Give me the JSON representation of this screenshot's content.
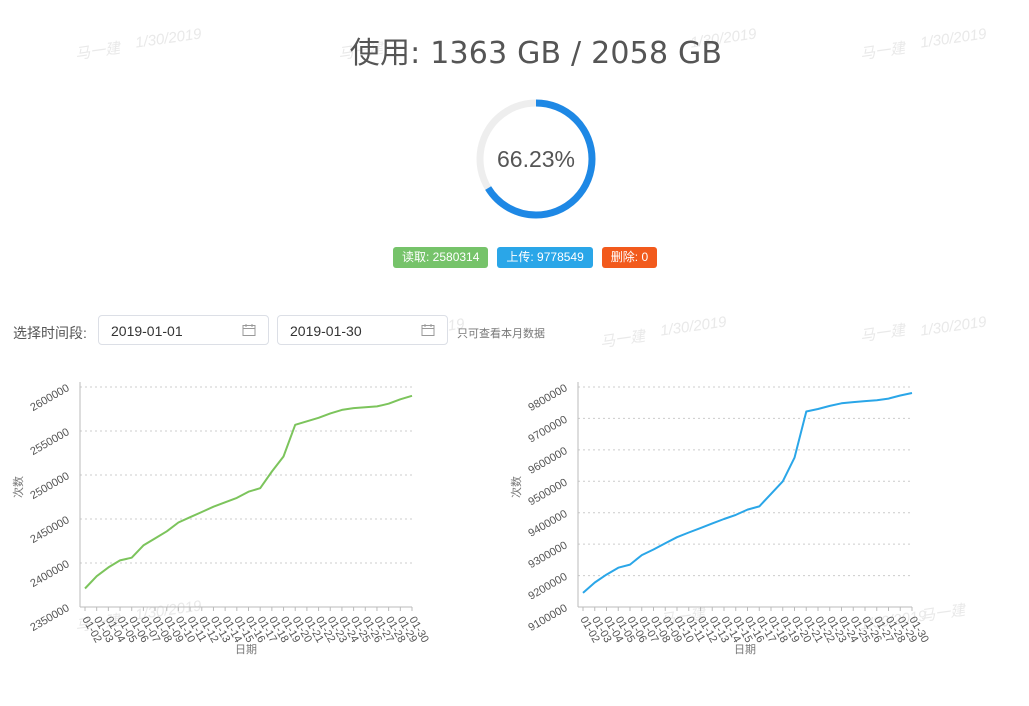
{
  "watermark": {
    "name": "马一建",
    "date": "1/30/2019"
  },
  "usage": {
    "title": "使用: 1363 GB / 2058 GB",
    "percent": 66.23,
    "percent_label": "66.23%",
    "color": "#1e88e5"
  },
  "badges": [
    {
      "label": "读取: 2580314",
      "color": "#76c36a"
    },
    {
      "label": "上传: 9778549",
      "color": "#2aa6e8"
    },
    {
      "label": "删除: 0",
      "color": "#f25a1c"
    }
  ],
  "filter": {
    "label": "选择时间段:",
    "start_date": "2019-01-01",
    "end_date": "2019-01-30",
    "hint": "只可查看本月数据"
  },
  "chart_data": [
    {
      "type": "line",
      "color": "#7cc45c",
      "ylabel": "次数",
      "xlabel": "日期",
      "ylim": [
        2350000,
        2600000
      ],
      "yticks": [
        2350000,
        2400000,
        2450000,
        2500000,
        2550000,
        2600000
      ],
      "grid": true,
      "categories": [
        "01-02",
        "01-03",
        "01-04",
        "01-05",
        "01-06",
        "01-07",
        "01-08",
        "01-09",
        "01-10",
        "01-11",
        "01-12",
        "01-13",
        "01-14",
        "01-15",
        "01-16",
        "01-17",
        "01-18",
        "01-19",
        "01-20",
        "01-21",
        "01-22",
        "01-23",
        "01-24",
        "01-25",
        "01-26",
        "01-27",
        "01-28",
        "01-29",
        "01-30"
      ],
      "values": [
        2371000,
        2385000,
        2395000,
        2403000,
        2406000,
        2420000,
        2428000,
        2436000,
        2446000,
        2452000,
        2458000,
        2464000,
        2469000,
        2474000,
        2481000,
        2485000,
        2504000,
        2521000,
        2557000,
        2561000,
        2565000,
        2570000,
        2574000,
        2576000,
        2577000,
        2578000,
        2581000,
        2586000,
        2590000
      ]
    },
    {
      "type": "line",
      "color": "#2aa6e8",
      "ylabel": "次数",
      "xlabel": "日期",
      "ylim": [
        9100000,
        9800000
      ],
      "yticks": [
        9100000,
        9200000,
        9300000,
        9400000,
        9500000,
        9600000,
        9700000,
        9800000
      ],
      "grid": true,
      "categories": [
        "01-02",
        "01-03",
        "01-04",
        "01-05",
        "01-06",
        "01-07",
        "01-08",
        "01-09",
        "01-10",
        "01-11",
        "01-12",
        "01-13",
        "01-14",
        "01-15",
        "01-16",
        "01-17",
        "01-18",
        "01-19",
        "01-20",
        "01-21",
        "01-22",
        "01-23",
        "01-24",
        "01-25",
        "01-26",
        "01-27",
        "01-28",
        "01-29",
        "01-30"
      ],
      "values": [
        9145000,
        9178000,
        9203000,
        9225000,
        9235000,
        9265000,
        9283000,
        9303000,
        9322000,
        9337000,
        9351000,
        9366000,
        9380000,
        9393000,
        9410000,
        9420000,
        9460000,
        9500000,
        9575000,
        9722000,
        9730000,
        9740000,
        9748000,
        9752000,
        9755000,
        9758000,
        9763000,
        9773000,
        9781000
      ]
    }
  ]
}
